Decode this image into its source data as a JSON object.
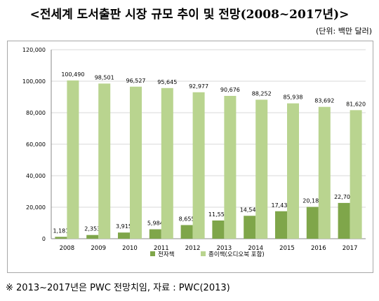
{
  "page": {
    "title": "<전세계 도서출판 시장 규모 추이 및 전망(2008~2017년)>",
    "unit": "(단위: 백만 달러)",
    "footnote": "※ 2013~2017년은 PWC 전망치임, 자료 : PWC(2013)"
  },
  "colors": {
    "ebook": "#7fa64a",
    "print": "#b9d48f",
    "grid": "#d9d9d9",
    "axis": "#888888",
    "text": "#000000"
  },
  "chart_data": {
    "type": "bar",
    "categories": [
      "2008",
      "2009",
      "2010",
      "2011",
      "2012",
      "2013",
      "2014",
      "2015",
      "2016",
      "2017"
    ],
    "series": [
      {
        "name": "전자책",
        "values": [
          1181,
          2353,
          3915,
          5984,
          8655,
          11559,
          14545,
          17437,
          20188,
          22709
        ],
        "labels": [
          "1,181",
          "2,353",
          "3,915",
          "5,984",
          "8,655",
          "11,559",
          "14,545",
          "17,437",
          "20,188",
          "22,709"
        ]
      },
      {
        "name": "종이책(오디오북 포함)",
        "values": [
          100490,
          98501,
          96527,
          95645,
          92977,
          90676,
          88252,
          85938,
          83692,
          81620
        ],
        "labels": [
          "100,490",
          "98,501",
          "96,527",
          "95,645",
          "92,977",
          "90,676",
          "88,252",
          "85,938",
          "83,692",
          "81,620"
        ]
      }
    ],
    "ylim": [
      0,
      120000
    ],
    "yticks": [
      0,
      20000,
      40000,
      60000,
      80000,
      100000,
      120000
    ],
    "ytick_labels": [
      "0",
      "20,000",
      "40,000",
      "60,000",
      "80,000",
      "100,000",
      "120,000"
    ],
    "grid": true,
    "legend": "bottom"
  }
}
